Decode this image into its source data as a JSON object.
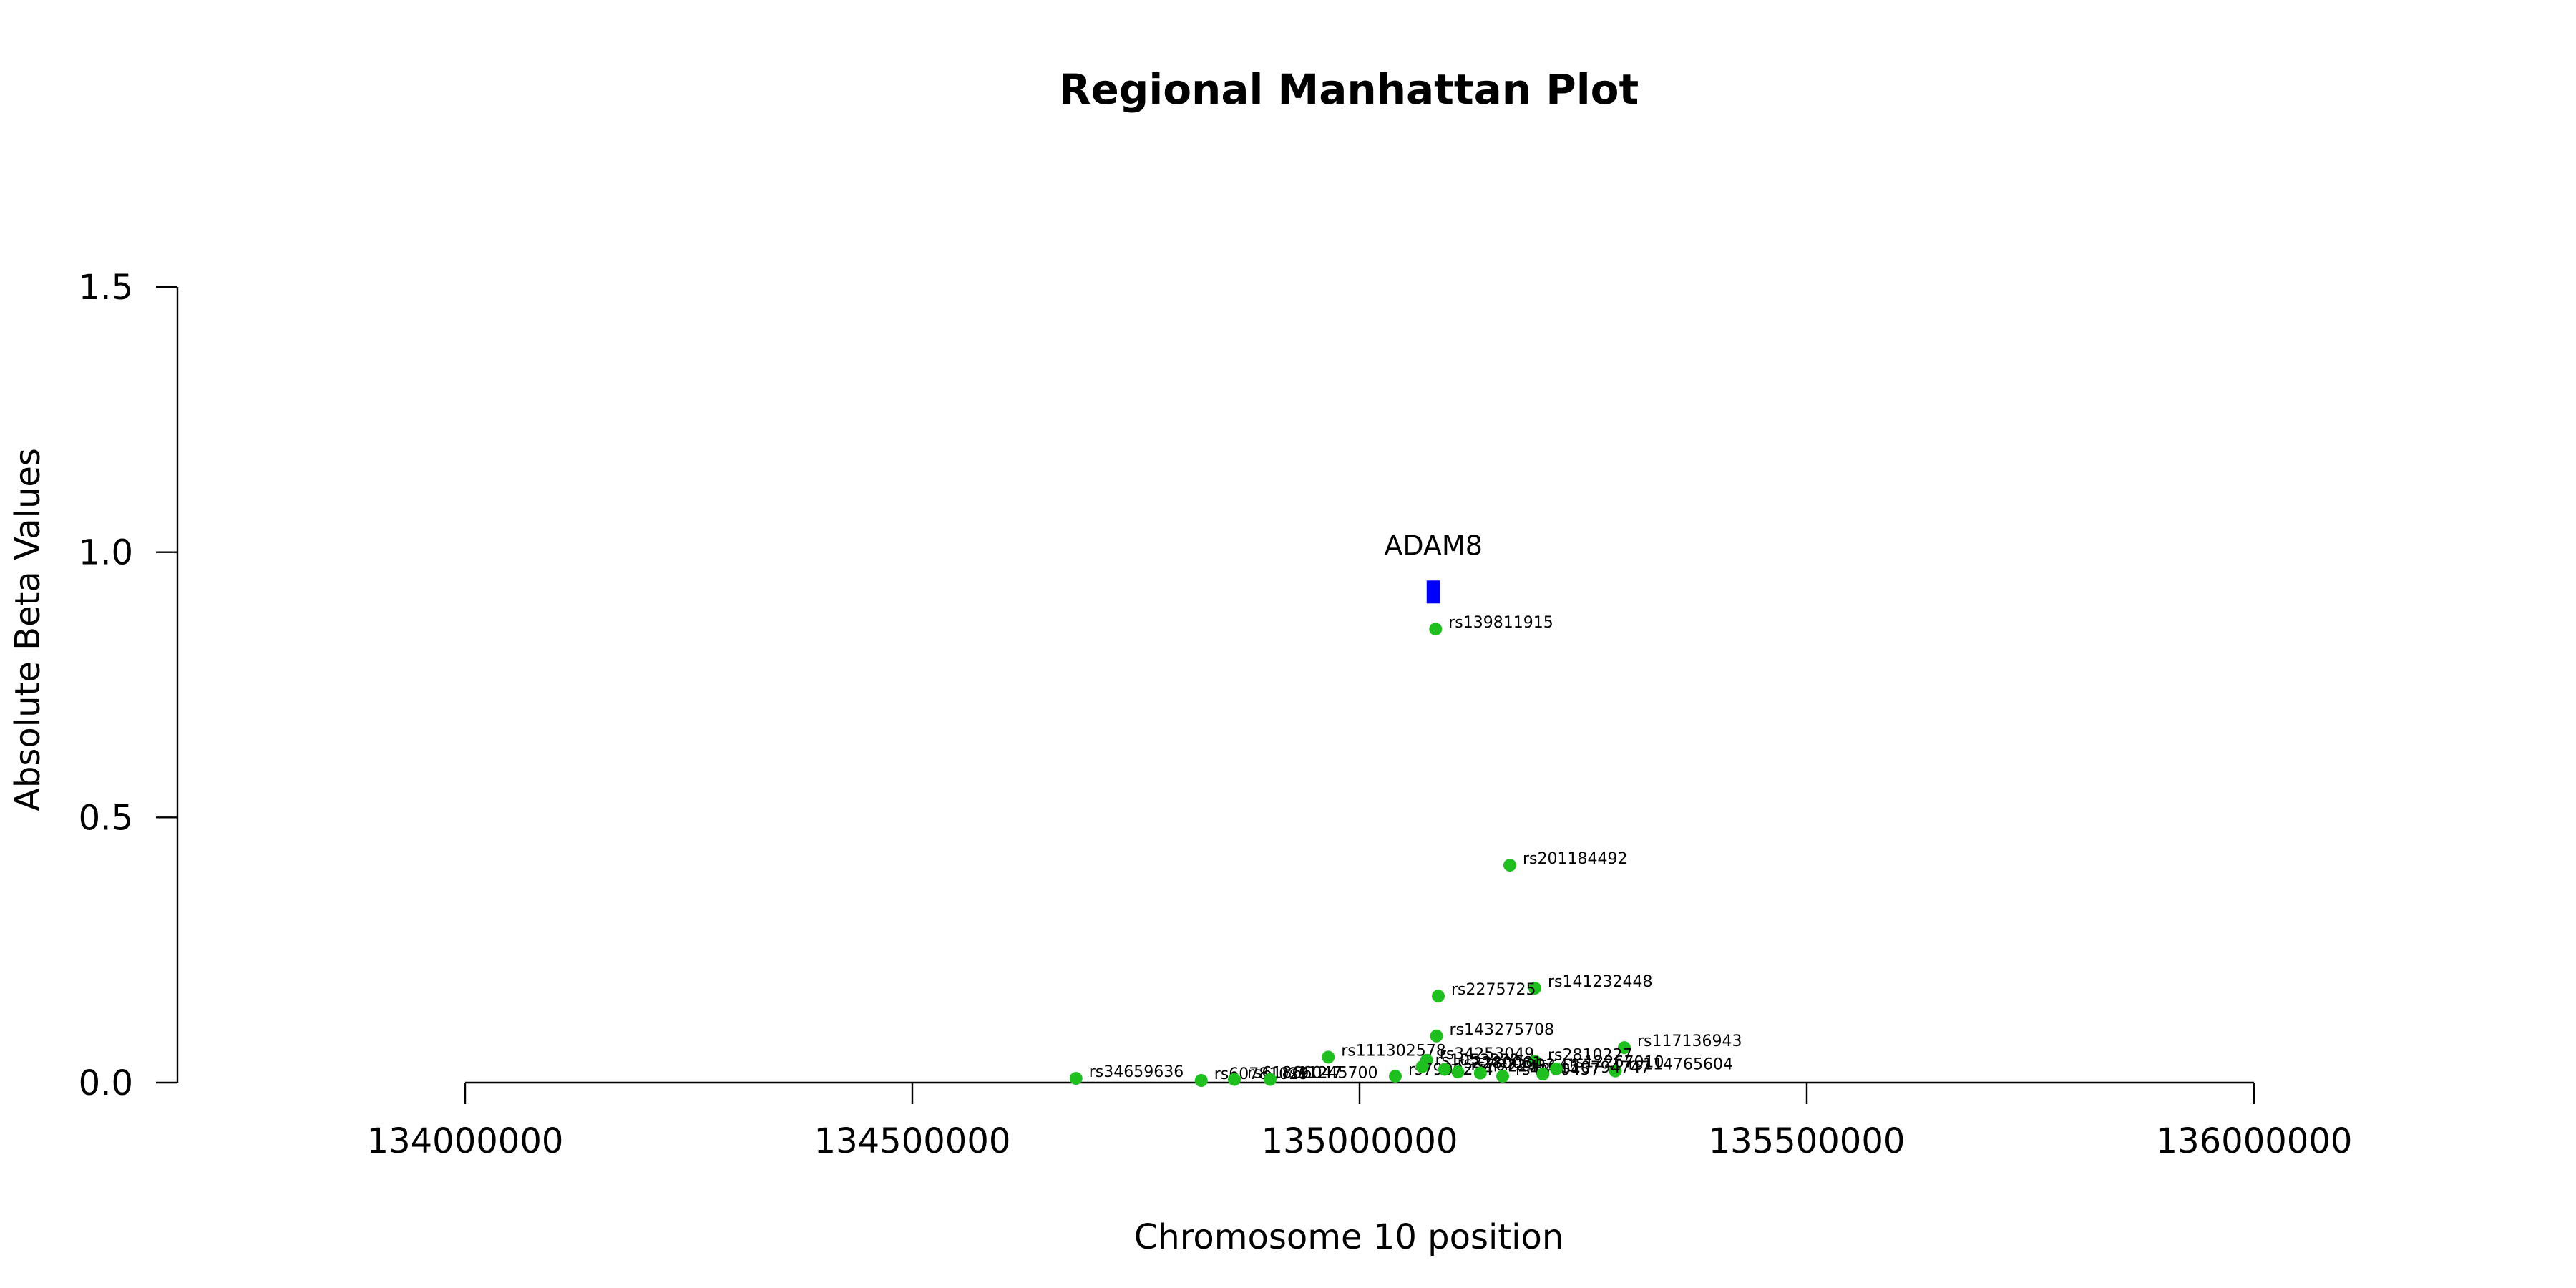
{
  "chart_data": {
    "type": "scatter",
    "title": "Regional Manhattan Plot",
    "xlabel": "Chromosome 10 position",
    "ylabel": "Absolute Beta Values",
    "xlim": [
      134000000,
      136000000
    ],
    "ylim": [
      0,
      1.5
    ],
    "x_ticks": [
      {
        "value": 134000000,
        "label": "134000000"
      },
      {
        "value": 134500000,
        "label": "134500000"
      },
      {
        "value": 135000000,
        "label": "135000000"
      },
      {
        "value": 135500000,
        "label": "135500000"
      },
      {
        "value": 136000000,
        "label": "136000000"
      }
    ],
    "y_ticks": [
      {
        "value": 0,
        "label": "0.0"
      },
      {
        "value": 0.5,
        "label": "0.5"
      },
      {
        "value": 1.0,
        "label": "1.0"
      },
      {
        "value": 1.5,
        "label": "1.5"
      }
    ],
    "point_color": "#1fbf1f",
    "gene": {
      "name": "ADAM8",
      "start": 135075000,
      "end": 135090000,
      "y": 0.925,
      "color": "#0000ff"
    },
    "points": [
      {
        "label": "rs139811915",
        "x": 135085000,
        "y": 0.855
      },
      {
        "label": "rs201184492",
        "x": 135168000,
        "y": 0.41
      },
      {
        "label": "rs141232448",
        "x": 135196000,
        "y": 0.178
      },
      {
        "label": "rs2275725",
        "x": 135088000,
        "y": 0.163
      },
      {
        "label": "rs143275708",
        "x": 135086000,
        "y": 0.088
      },
      {
        "label": "rs117136943",
        "x": 135296000,
        "y": 0.066
      },
      {
        "label": "rs111302578",
        "x": 134965000,
        "y": 0.048
      },
      {
        "label": "rs34253049",
        "x": 135075000,
        "y": 0.042
      },
      {
        "label": "rs2810227",
        "x": 135196000,
        "y": 0.04
      },
      {
        "label": "rs114765604",
        "x": 135286000,
        "y": 0.022
      },
      {
        "label": "rs34659636",
        "x": 134683000,
        "y": 0.008
      },
      {
        "label": "rs60781029",
        "x": 134823000,
        "y": 0.004
      },
      {
        "label": "rs61866047",
        "x": 134860000,
        "y": 0.006
      },
      {
        "label": "rs11245700",
        "x": 134900000,
        "y": 0.006
      },
      {
        "label": "rs7900224",
        "x": 135040000,
        "y": 0.012
      },
      {
        "label": "rs1053372",
        "x": 135070000,
        "y": 0.03
      },
      {
        "label": "rs2280061",
        "x": 135095000,
        "y": 0.025
      },
      {
        "label": "rs7072993",
        "x": 135110000,
        "y": 0.02
      },
      {
        "label": "rs2245643",
        "x": 135135000,
        "y": 0.018
      },
      {
        "label": "rs4880457",
        "x": 135160000,
        "y": 0.012
      },
      {
        "label": "rs10794747",
        "x": 135205000,
        "y": 0.016
      },
      {
        "label": "rs12267010",
        "x": 135220000,
        "y": 0.026
      }
    ]
  }
}
